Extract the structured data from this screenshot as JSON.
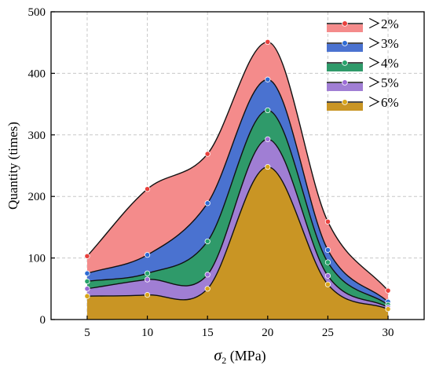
{
  "chart_data": {
    "type": "area",
    "title": "",
    "xlabel": "σ₂ (MPa)",
    "xlabel_parts": {
      "symbol": "σ",
      "subscript": "2",
      "unit": " (MPa)"
    },
    "ylabel": "Quantity (times)",
    "x": [
      5,
      10,
      15,
      20,
      25,
      30
    ],
    "x_ticks": [
      "5",
      "10",
      "15",
      "20",
      "25",
      "30"
    ],
    "y_ticks": [
      "0",
      "100",
      "200",
      "300",
      "400",
      "500"
    ],
    "xlim": [
      2,
      33
    ],
    "ylim": [
      0,
      500
    ],
    "grid": true,
    "legend_position": "top-right",
    "series": [
      {
        "name": "＞2%",
        "values": [
          103,
          212,
          269,
          451,
          159,
          47
        ],
        "color": "#f48b8b",
        "marker_color": "#e8403c"
      },
      {
        "name": "＞3%",
        "values": [
          75,
          105,
          189,
          390,
          113,
          29
        ],
        "color": "#4a72d0",
        "marker_color": "#2d6bd4"
      },
      {
        "name": "＞4%",
        "values": [
          62,
          75,
          127,
          340,
          93,
          24
        ],
        "color": "#2f9a6a",
        "marker_color": "#27a36a"
      },
      {
        "name": "＞5%",
        "values": [
          50,
          65,
          73,
          293,
          71,
          20
        ],
        "color": "#a07ed4",
        "marker_color": "#9b6ad6"
      },
      {
        "name": "＞6%",
        "values": [
          38,
          40,
          50,
          248,
          57,
          17
        ],
        "color": "#c99524",
        "marker_color": "#d8a51a"
      }
    ]
  }
}
